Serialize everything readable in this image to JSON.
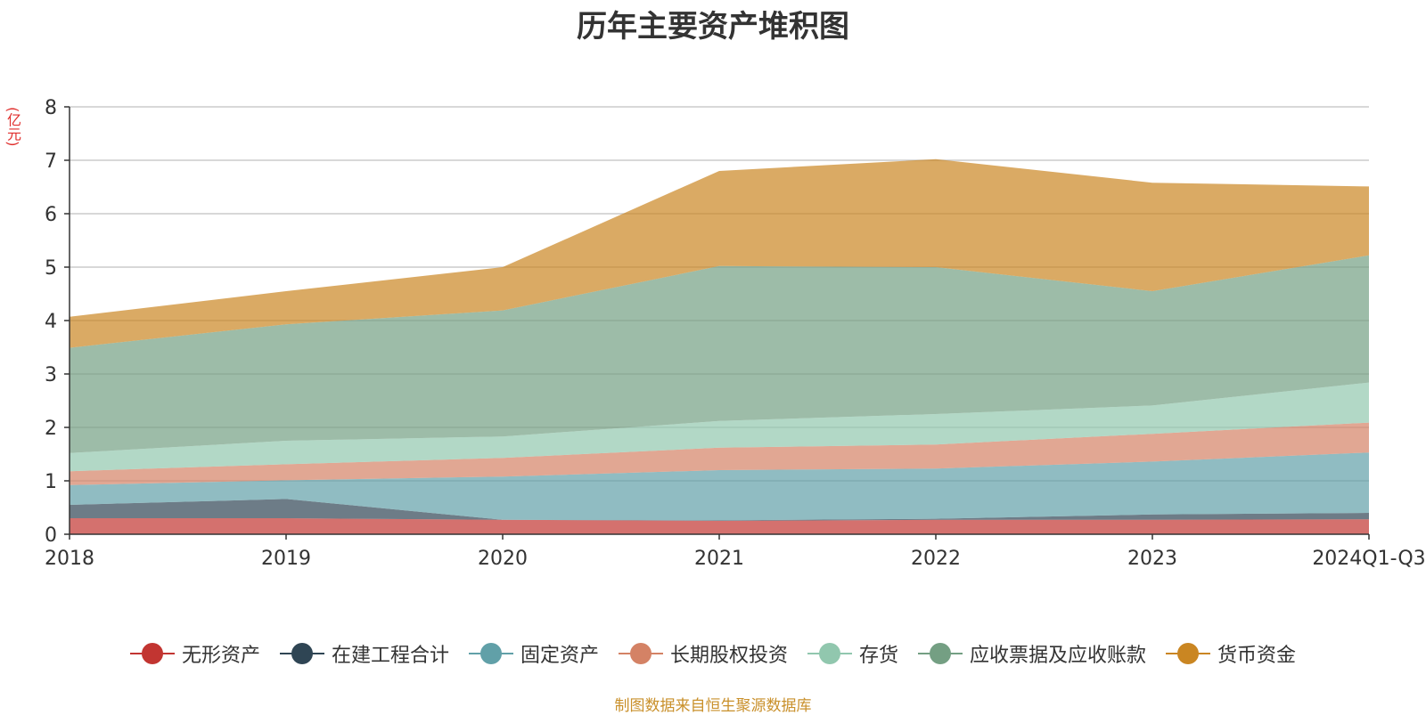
{
  "chart_data": {
    "type": "area",
    "title": "历年主要资产堆积图",
    "unit_label": "(亿元)",
    "x": [
      "2018",
      "2019",
      "2020",
      "2021",
      "2022",
      "2023",
      "2024Q1-Q3"
    ],
    "ylim": [
      0,
      8
    ],
    "yticks": [
      0,
      1,
      2,
      3,
      4,
      5,
      6,
      7,
      8
    ],
    "stacked": true,
    "grid": true,
    "legend_position": "bottom",
    "series": [
      {
        "name": "无形资产",
        "color": "#c23531",
        "values": [
          0.3,
          0.3,
          0.27,
          0.25,
          0.27,
          0.27,
          0.28
        ]
      },
      {
        "name": "在建工程合计",
        "color": "#2f4554",
        "values": [
          0.25,
          0.36,
          0.0,
          0.01,
          0.02,
          0.1,
          0.12
        ]
      },
      {
        "name": "固定资产",
        "color": "#61a0a8",
        "values": [
          0.37,
          0.35,
          0.81,
          0.94,
          0.94,
          0.99,
          1.13
        ]
      },
      {
        "name": "长期股权投资",
        "color": "#d48265",
        "values": [
          0.26,
          0.3,
          0.35,
          0.42,
          0.45,
          0.52,
          0.56
        ]
      },
      {
        "name": "存货",
        "color": "#91c7ae",
        "values": [
          0.34,
          0.44,
          0.4,
          0.5,
          0.57,
          0.53,
          0.75
        ]
      },
      {
        "name": "应收票据及应收账款",
        "color": "#749f83",
        "values": [
          1.97,
          2.18,
          2.36,
          2.9,
          2.75,
          2.14,
          2.38
        ]
      },
      {
        "name": "货币资金",
        "color": "#ca8622",
        "values": [
          0.58,
          0.62,
          0.81,
          1.78,
          2.02,
          2.03,
          1.29
        ]
      }
    ]
  },
  "source_note": "制图数据来自恒生聚源数据库"
}
